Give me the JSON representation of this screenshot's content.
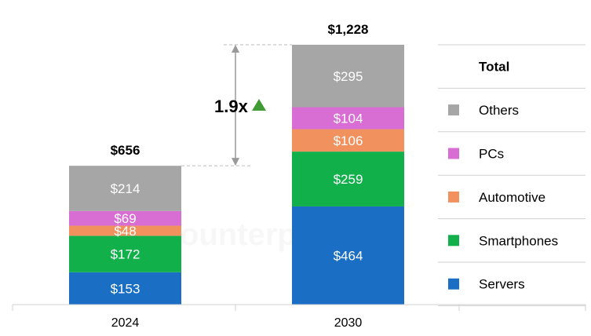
{
  "chart_data": {
    "type": "bar",
    "stacked": true,
    "categories": [
      "2024",
      "2030"
    ],
    "series": [
      {
        "name": "Servers",
        "values": [
          153,
          464
        ],
        "labels": [
          "$153",
          "$464"
        ],
        "color": "#1a6fc4"
      },
      {
        "name": "Smartphones",
        "values": [
          172,
          259
        ],
        "labels": [
          "$172",
          "$259"
        ],
        "color": "#11b04b"
      },
      {
        "name": "Automotive",
        "values": [
          48,
          106
        ],
        "labels": [
          "$48",
          "$106"
        ],
        "color": "#f0915e"
      },
      {
        "name": "PCs",
        "values": [
          69,
          104
        ],
        "labels": [
          "$69",
          "$104"
        ],
        "color": "#d86ed4"
      },
      {
        "name": "Others",
        "values": [
          214,
          295
        ],
        "labels": [
          "$214",
          "$295"
        ],
        "color": "#a6a6a6"
      }
    ],
    "totals": [
      656,
      1228
    ],
    "total_labels": [
      "$656",
      "$1,228"
    ],
    "growth": {
      "text": "1.9x",
      "arrow_color": "#3f9c35"
    },
    "legend": {
      "title": "Total",
      "placement": "right"
    },
    "ylim": [
      0,
      1228
    ],
    "grid": false
  },
  "watermark": "Counterpoint"
}
